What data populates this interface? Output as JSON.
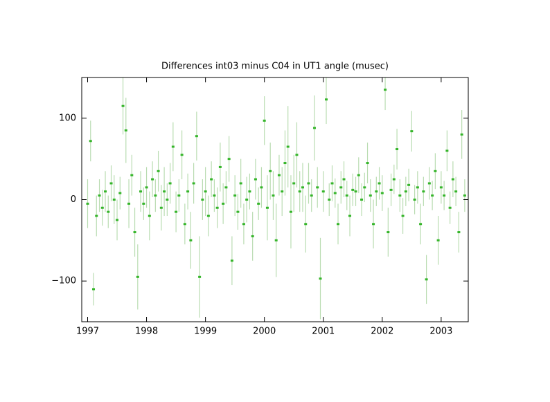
{
  "chart_data": {
    "type": "scatter",
    "title": "Differences int03 minus C04 in UT1 angle   (musec)",
    "xlim": [
      1996.9,
      2003.46
    ],
    "ylim": [
      -150,
      150
    ],
    "xticks": [
      1997,
      1998,
      1999,
      2000,
      2001,
      2002,
      2003
    ],
    "yticks": [
      {
        "value": -100,
        "label": "−100"
      },
      0,
      100
    ],
    "series": [
      {
        "color": "#35b52a",
        "error_color": "#b9dcb1",
        "x": [
          1997.0,
          1997.05,
          1997.1,
          1997.15,
          1997.2,
          1997.25,
          1997.3,
          1997.35,
          1997.4,
          1997.45,
          1997.5,
          1997.55,
          1997.6,
          1997.65,
          1997.7,
          1997.75,
          1997.8,
          1997.85,
          1997.9,
          1997.95,
          1998.0,
          1998.05,
          1998.1,
          1998.15,
          1998.2,
          1998.25,
          1998.3,
          1998.35,
          1998.4,
          1998.45,
          1998.5,
          1998.55,
          1998.6,
          1998.65,
          1998.7,
          1998.75,
          1998.8,
          1998.85,
          1998.9,
          1998.95,
          1999.0,
          1999.05,
          1999.1,
          1999.15,
          1999.2,
          1999.25,
          1999.3,
          1999.35,
          1999.4,
          1999.45,
          1999.5,
          1999.55,
          1999.6,
          1999.65,
          1999.7,
          1999.75,
          1999.8,
          1999.85,
          1999.9,
          1999.95,
          2000.0,
          2000.05,
          2000.1,
          2000.15,
          2000.2,
          2000.25,
          2000.3,
          2000.35,
          2000.4,
          2000.45,
          2000.5,
          2000.55,
          2000.6,
          2000.65,
          2000.7,
          2000.75,
          2000.8,
          2000.85,
          2000.9,
          2000.95,
          2001.0,
          2001.05,
          2001.1,
          2001.15,
          2001.2,
          2001.25,
          2001.3,
          2001.35,
          2001.4,
          2001.45,
          2001.5,
          2001.55,
          2001.6,
          2001.65,
          2001.7,
          2001.75,
          2001.8,
          2001.85,
          2001.9,
          2001.95,
          2002.0,
          2002.05,
          2002.1,
          2002.15,
          2002.2,
          2002.25,
          2002.3,
          2002.35,
          2002.4,
          2002.45,
          2002.5,
          2002.55,
          2002.6,
          2002.65,
          2002.7,
          2002.75,
          2002.8,
          2002.85,
          2002.9,
          2002.95,
          2003.0,
          2003.05,
          2003.1,
          2003.15,
          2003.2,
          2003.25,
          2003.3,
          2003.35,
          2003.4
        ],
        "values": [
          -5,
          72,
          -110,
          -20,
          5,
          -10,
          10,
          -15,
          20,
          0,
          -25,
          8,
          115,
          85,
          -5,
          30,
          -40,
          -95,
          10,
          -5,
          15,
          -20,
          25,
          5,
          35,
          -10,
          10,
          0,
          20,
          65,
          -15,
          5,
          55,
          -30,
          10,
          -50,
          20,
          78,
          -95,
          0,
          10,
          -20,
          25,
          5,
          -10,
          40,
          -5,
          15,
          50,
          -75,
          5,
          -15,
          20,
          -30,
          0,
          10,
          -45,
          25,
          -5,
          15,
          97,
          -10,
          35,
          5,
          -50,
          30,
          10,
          45,
          65,
          -15,
          20,
          55,
          10,
          15,
          -30,
          20,
          5,
          88,
          15,
          -97,
          10,
          123,
          0,
          20,
          8,
          -30,
          15,
          25,
          5,
          -20,
          12,
          10,
          30,
          0,
          15,
          45,
          5,
          -30,
          10,
          20,
          8,
          135,
          -40,
          12,
          25,
          62,
          5,
          -20,
          10,
          18,
          84,
          0,
          15,
          -30,
          10,
          -98,
          20,
          5,
          35,
          -50,
          15,
          5,
          60,
          -10,
          25,
          10,
          -40,
          80,
          5
        ],
        "errors": [
          30,
          25,
          20,
          25,
          20,
          22,
          25,
          20,
          22,
          30,
          25,
          20,
          35,
          40,
          30,
          25,
          30,
          40,
          25,
          20,
          25,
          30,
          22,
          20,
          25,
          28,
          30,
          20,
          25,
          30,
          25,
          20,
          30,
          25,
          22,
          35,
          25,
          30,
          50,
          25,
          30,
          25,
          22,
          20,
          25,
          30,
          25,
          20,
          28,
          30,
          25,
          22,
          30,
          25,
          28,
          22,
          30,
          25,
          20,
          25,
          30,
          40,
          35,
          30,
          45,
          25,
          30,
          40,
          50,
          45,
          35,
          40,
          25,
          30,
          35,
          25,
          20,
          40,
          25,
          50,
          25,
          30,
          20,
          22,
          18,
          25,
          20,
          22,
          18,
          25,
          20,
          18,
          22,
          20,
          18,
          25,
          20,
          30,
          18,
          20,
          22,
          25,
          30,
          20,
          18,
          25,
          20,
          22,
          18,
          20,
          25,
          18,
          20,
          25,
          18,
          30,
          20,
          18,
          22,
          30,
          20,
          18,
          25,
          20,
          22,
          18,
          25,
          30,
          20
        ]
      }
    ]
  }
}
